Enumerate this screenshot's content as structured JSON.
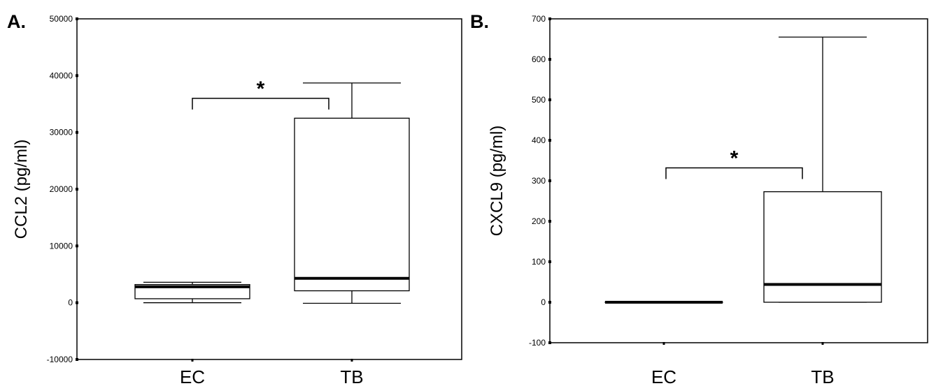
{
  "chart_data": [
    {
      "type": "boxplot",
      "panel_label": "A.",
      "ylabel": "CCL2 (pg/ml)",
      "ylim": [
        -10000,
        50000
      ],
      "yticks": [
        -10000,
        0,
        10000,
        20000,
        30000,
        40000,
        50000
      ],
      "categories": [
        "EC",
        "TB"
      ],
      "boxes": [
        {
          "category": "EC",
          "whisker_low": 0,
          "q1": 700,
          "median": 2800,
          "q3": 3200,
          "whisker_high": 3600
        },
        {
          "category": "TB",
          "whisker_low": -100,
          "q1": 2100,
          "median": 4300,
          "q3": 32500,
          "whisker_high": 38700
        }
      ],
      "significance": {
        "between": [
          "EC",
          "TB"
        ],
        "label": "*",
        "level": 36000
      },
      "grid": false
    },
    {
      "type": "boxplot",
      "panel_label": "B.",
      "ylabel": "CXCL9 (pg/ml)",
      "ylim": [
        -100,
        700
      ],
      "yticks": [
        -100,
        0,
        100,
        200,
        300,
        400,
        500,
        600,
        700
      ],
      "categories": [
        "EC",
        "TB"
      ],
      "boxes": [
        {
          "category": "EC",
          "whisker_low": 0,
          "q1": 0,
          "median": 0,
          "q3": 0,
          "whisker_high": 0
        },
        {
          "category": "TB",
          "whisker_low": 0,
          "q1": 0,
          "median": 44,
          "q3": 273,
          "whisker_high": 655
        }
      ],
      "significance": {
        "between": [
          "EC",
          "TB"
        ],
        "label": "*",
        "level": 332
      },
      "grid": false
    }
  ]
}
